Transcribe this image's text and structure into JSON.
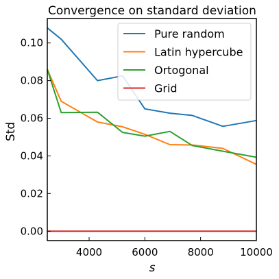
{
  "chart_data": {
    "type": "line",
    "title": "Convergence on standard deviation",
    "xlabel": "s",
    "ylabel": "Std",
    "xlim": [
      2500,
      10000
    ],
    "ylim": [
      -0.005,
      0.113
    ],
    "xticks": [
      4000,
      6000,
      8000,
      10000
    ],
    "xtick_labels": [
      "4000",
      "6000",
      "8000",
      "10000"
    ],
    "yticks": [
      0.0,
      0.02,
      0.04,
      0.06,
      0.08,
      0.1
    ],
    "ytick_labels": [
      "0.00",
      "0.02",
      "0.04",
      "0.06",
      "0.08",
      "0.10"
    ],
    "grid": false,
    "legend_position": "top-right",
    "series": [
      {
        "name": "Pure random",
        "color": "#1f77b4",
        "x": [
          2500,
          3000,
          4300,
          5200,
          6000,
          6900,
          7700,
          8800,
          10000
        ],
        "y": [
          0.108,
          0.102,
          0.08,
          0.0825,
          0.065,
          0.0627,
          0.0615,
          0.0557,
          0.0588
        ]
      },
      {
        "name": "Latin hypercube",
        "color": "#ff7f0e",
        "x": [
          2500,
          3000,
          4300,
          5200,
          6000,
          6900,
          7700,
          8800,
          10000
        ],
        "y": [
          0.086,
          0.069,
          0.058,
          0.0555,
          0.0515,
          0.046,
          0.0458,
          0.044,
          0.0355
        ]
      },
      {
        "name": "Ortogonal",
        "color": "#2ca02c",
        "x": [
          2500,
          3000,
          4300,
          5200,
          6000,
          6900,
          7700,
          8800,
          10000
        ],
        "y": [
          0.086,
          0.063,
          0.0632,
          0.0525,
          0.0505,
          0.053,
          0.0455,
          0.0425,
          0.0393
        ]
      },
      {
        "name": "Grid",
        "color": "#d62728",
        "x": [
          2500,
          10000
        ],
        "y": [
          0.0,
          0.0
        ]
      }
    ]
  }
}
